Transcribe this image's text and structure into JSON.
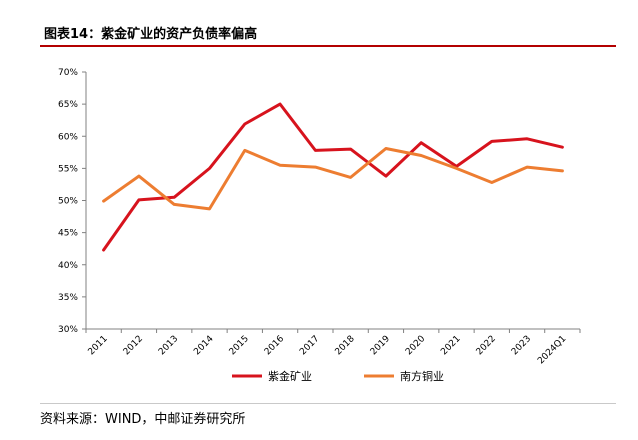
{
  "header": {
    "title": "图表14：紫金矿业的资产负债率偏高"
  },
  "footer": {
    "source": "资料来源：WIND，中邮证券研究所"
  },
  "colors": {
    "title_rule": "#b30000",
    "axis": "#808080"
  },
  "chart_data": {
    "type": "line",
    "categories": [
      "2011",
      "2012",
      "2013",
      "2014",
      "2015",
      "2016",
      "2017",
      "2018",
      "2019",
      "2020",
      "2021",
      "2022",
      "2023",
      "2024Q1"
    ],
    "ylim": [
      30,
      70
    ],
    "yticks": [
      30,
      35,
      40,
      45,
      50,
      55,
      60,
      65,
      70
    ],
    "ytick_labels": [
      "30%",
      "35%",
      "40%",
      "45%",
      "50%",
      "55%",
      "60%",
      "65%",
      "70%"
    ],
    "grid": false,
    "legend_position": "bottom-center",
    "series": [
      {
        "name": "紫金矿业",
        "color": "#d7131d",
        "values": [
          42.3,
          50.1,
          50.5,
          55.0,
          61.9,
          65.0,
          57.8,
          58.0,
          53.8,
          59.0,
          55.3,
          59.2,
          59.6,
          58.3
        ]
      },
      {
        "name": "南方铜业",
        "color": "#ed7d31",
        "values": [
          49.9,
          53.8,
          49.4,
          48.7,
          57.8,
          55.5,
          55.2,
          53.6,
          58.1,
          57.0,
          55.0,
          52.8,
          55.2,
          54.6
        ]
      }
    ]
  }
}
